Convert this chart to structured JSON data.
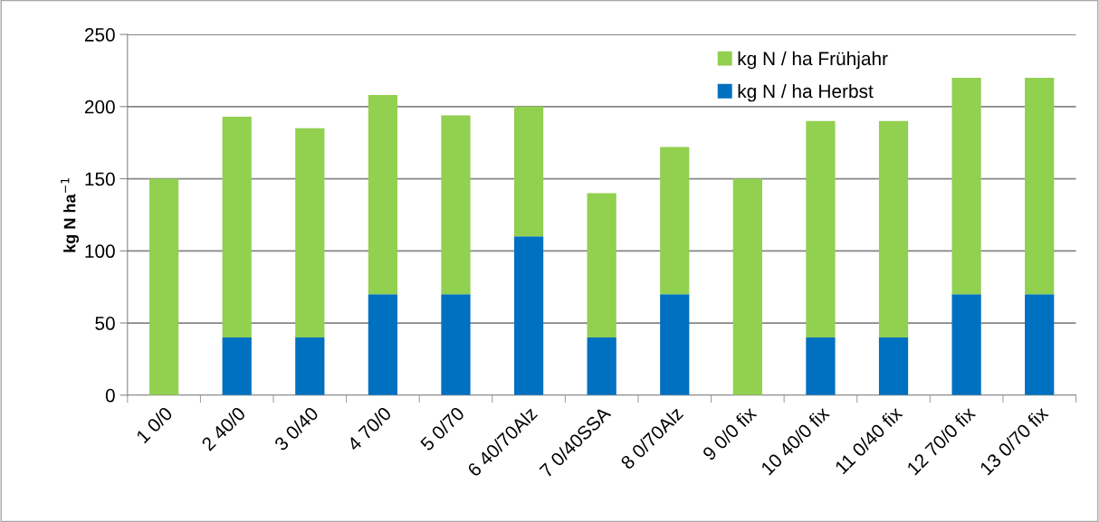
{
  "chart_data": {
    "type": "bar",
    "stacked": true,
    "ylabel": "kg N ha$^{−1}$",
    "categories": [
      "1 0/0",
      "2 40/0",
      "3 0/40",
      "4 70/0",
      "5 0/70",
      "6 40/70Alz",
      "7 0/40SSA",
      "8 0/70Alz",
      "9 0/0 fix",
      "10 40/0 fix",
      "11 0/40 fix",
      "12 70/0 fix",
      "13 0/70 fix"
    ],
    "series": [
      {
        "name": "kg N / ha Herbst",
        "color": "#0070c0",
        "values": [
          0,
          40,
          40,
          70,
          70,
          110,
          40,
          70,
          0,
          40,
          40,
          70,
          70
        ]
      },
      {
        "name": "kg N / ha Frühjahr",
        "color": "#92d050",
        "values": [
          150,
          153,
          145,
          138,
          124,
          90,
          100,
          102,
          150,
          150,
          150,
          150,
          150
        ]
      }
    ],
    "ylim": [
      0,
      250
    ],
    "yticks": [
      0,
      50,
      100,
      150,
      200,
      250
    ],
    "grid": "y",
    "legend": "top right"
  }
}
